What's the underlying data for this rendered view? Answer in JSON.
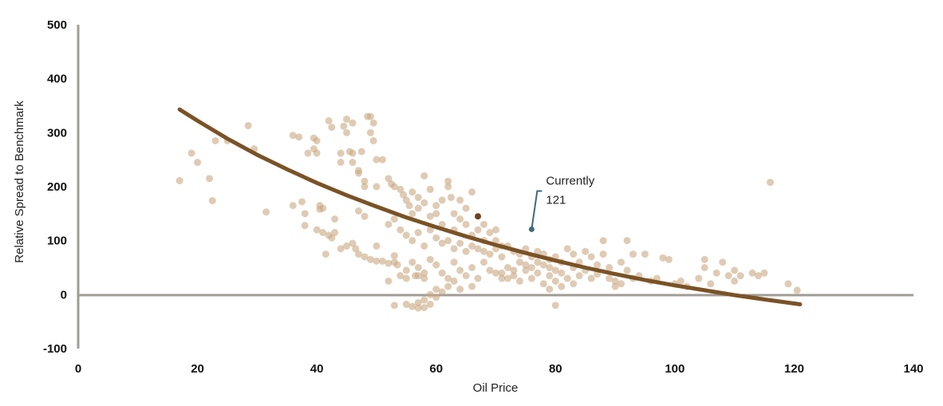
{
  "chart_data": {
    "type": "scatter",
    "title": "",
    "xlabel": "Oil Price",
    "ylabel": "Relative Spread to Benchmark",
    "xlim": [
      0,
      140
    ],
    "ylim": [
      -100,
      500
    ],
    "xticks": [
      "0",
      "20",
      "40",
      "60",
      "80",
      "100",
      "120",
      "140"
    ],
    "yticks": [
      "500",
      "400",
      "300",
      "200",
      "100",
      "0",
      "-100"
    ],
    "grid": false,
    "colors": {
      "points": "#c9a882",
      "trend": "#7a5226",
      "highlight": "#6b4420",
      "annotation": "#3f6b78",
      "axis": "#a09c96"
    },
    "highlight_point": [
      67,
      145
    ],
    "annotation": {
      "line1": "Currently",
      "line2": "121",
      "point": [
        76,
        121
      ]
    },
    "trendline": [
      [
        17,
        343
      ],
      [
        20,
        322
      ],
      [
        25,
        289
      ],
      [
        30,
        259
      ],
      [
        35,
        232
      ],
      [
        40,
        207
      ],
      [
        45,
        184
      ],
      [
        50,
        163
      ],
      [
        55,
        143
      ],
      [
        60,
        125
      ],
      [
        65,
        108
      ],
      [
        70,
        92
      ],
      [
        75,
        77
      ],
      [
        80,
        63
      ],
      [
        85,
        50
      ],
      [
        90,
        38
      ],
      [
        95,
        27
      ],
      [
        100,
        17
      ],
      [
        105,
        8
      ],
      [
        110,
        -1
      ],
      [
        115,
        -9
      ],
      [
        121,
        -18
      ]
    ],
    "points": [
      [
        17,
        211
      ],
      [
        19,
        262
      ],
      [
        20,
        245
      ],
      [
        22,
        215
      ],
      [
        22.5,
        174
      ],
      [
        23,
        285
      ],
      [
        25,
        285
      ],
      [
        28.5,
        313
      ],
      [
        29.5,
        270
      ],
      [
        31.5,
        153
      ],
      [
        36,
        165
      ],
      [
        36,
        295
      ],
      [
        37,
        292
      ],
      [
        37.5,
        172
      ],
      [
        38,
        150
      ],
      [
        38,
        128
      ],
      [
        38.5,
        262
      ],
      [
        39.5,
        290
      ],
      [
        39.5,
        270
      ],
      [
        40,
        285
      ],
      [
        40,
        262
      ],
      [
        40.5,
        165
      ],
      [
        40.5,
        158
      ],
      [
        41,
        160
      ],
      [
        40,
        120
      ],
      [
        41,
        115
      ],
      [
        41.5,
        75
      ],
      [
        42,
        110
      ],
      [
        42.5,
        105
      ],
      [
        42,
        322
      ],
      [
        42.5,
        310
      ],
      [
        43,
        115
      ],
      [
        43,
        140
      ],
      [
        44,
        245
      ],
      [
        44,
        262
      ],
      [
        44.5,
        312
      ],
      [
        45,
        325
      ],
      [
        45,
        300
      ],
      [
        45.5,
        265
      ],
      [
        46,
        262
      ],
      [
        46,
        318
      ],
      [
        46,
        245
      ],
      [
        47,
        230
      ],
      [
        47,
        225
      ],
      [
        47.5,
        265
      ],
      [
        48,
        200
      ],
      [
        48,
        210
      ],
      [
        48.5,
        330
      ],
      [
        49,
        330
      ],
      [
        49,
        300
      ],
      [
        49.5,
        318
      ],
      [
        49.5,
        285
      ],
      [
        50,
        250
      ],
      [
        50,
        200
      ],
      [
        46,
        95
      ],
      [
        46.5,
        85
      ],
      [
        45,
        90
      ],
      [
        47,
        75
      ],
      [
        48,
        70
      ],
      [
        49,
        65
      ],
      [
        50,
        62
      ],
      [
        51,
        62
      ],
      [
        52,
        58
      ],
      [
        53,
        60
      ],
      [
        53,
        72
      ],
      [
        53.5,
        55
      ],
      [
        54,
        35
      ],
      [
        53,
        -20
      ],
      [
        55,
        -18
      ],
      [
        56,
        -22
      ],
      [
        57,
        -25
      ],
      [
        58,
        -24
      ],
      [
        58,
        -10
      ],
      [
        56.5,
        35
      ],
      [
        57,
        35
      ],
      [
        58,
        30
      ],
      [
        52,
        25
      ],
      [
        55,
        45
      ],
      [
        48,
        145
      ],
      [
        47,
        155
      ],
      [
        44,
        85
      ],
      [
        50,
        90
      ],
      [
        51,
        250
      ],
      [
        52,
        215
      ],
      [
        52.5,
        205
      ],
      [
        53,
        200
      ],
      [
        54,
        195
      ],
      [
        54.5,
        185
      ],
      [
        55,
        175
      ],
      [
        55.5,
        165
      ],
      [
        56,
        150
      ],
      [
        56,
        190
      ],
      [
        57,
        180
      ],
      [
        57,
        160
      ],
      [
        58,
        220
      ],
      [
        58,
        170
      ],
      [
        59,
        145
      ],
      [
        59,
        195
      ],
      [
        60,
        150
      ],
      [
        60,
        165
      ],
      [
        61,
        175
      ],
      [
        61,
        130
      ],
      [
        62,
        210
      ],
      [
        62,
        200
      ],
      [
        62.5,
        180
      ],
      [
        63,
        150
      ],
      [
        63,
        120
      ],
      [
        64,
        175
      ],
      [
        64,
        140
      ],
      [
        65,
        160
      ],
      [
        65,
        130
      ],
      [
        66,
        190
      ],
      [
        66,
        110
      ],
      [
        67,
        120
      ],
      [
        68,
        100
      ],
      [
        68,
        130
      ],
      [
        69,
        115
      ],
      [
        70,
        100
      ],
      [
        70,
        120
      ],
      [
        71,
        90
      ],
      [
        52,
        130
      ],
      [
        53,
        140
      ],
      [
        54,
        120
      ],
      [
        55,
        110
      ],
      [
        56,
        100
      ],
      [
        57,
        115
      ],
      [
        58,
        90
      ],
      [
        59,
        120
      ],
      [
        60,
        105
      ],
      [
        61,
        95
      ],
      [
        62,
        100
      ],
      [
        63,
        85
      ],
      [
        64,
        95
      ],
      [
        65,
        80
      ],
      [
        66,
        90
      ],
      [
        67,
        85
      ],
      [
        68,
        80
      ],
      [
        69,
        75
      ],
      [
        70,
        85
      ],
      [
        71,
        70
      ],
      [
        72,
        90
      ],
      [
        73,
        80
      ],
      [
        74,
        75
      ],
      [
        75,
        85
      ],
      [
        76,
        70
      ],
      [
        77,
        80
      ],
      [
        78,
        75
      ],
      [
        79,
        65
      ],
      [
        80,
        70
      ],
      [
        81,
        60
      ],
      [
        55,
        30
      ],
      [
        56,
        60
      ],
      [
        57,
        50
      ],
      [
        58,
        40
      ],
      [
        59,
        65
      ],
      [
        60,
        55
      ],
      [
        61,
        40
      ],
      [
        62,
        30
      ],
      [
        63,
        60
      ],
      [
        64,
        45
      ],
      [
        65,
        35
      ],
      [
        66,
        50
      ],
      [
        67,
        30
      ],
      [
        68,
        60
      ],
      [
        69,
        45
      ],
      [
        70,
        40
      ],
      [
        71,
        30
      ],
      [
        72,
        50
      ],
      [
        73,
        35
      ],
      [
        74,
        25
      ],
      [
        75,
        45
      ],
      [
        76,
        30
      ],
      [
        77,
        40
      ],
      [
        78,
        20
      ],
      [
        79,
        35
      ],
      [
        80,
        25
      ],
      [
        81,
        40
      ],
      [
        82,
        30
      ],
      [
        83,
        20
      ],
      [
        84,
        35
      ],
      [
        59,
        0
      ],
      [
        60,
        10
      ],
      [
        61,
        5
      ],
      [
        62,
        15
      ],
      [
        57,
        -15
      ],
      [
        59,
        -18
      ],
      [
        60,
        -5
      ],
      [
        63,
        25
      ],
      [
        64,
        10
      ],
      [
        66,
        15
      ],
      [
        71,
        40
      ],
      [
        72,
        30
      ],
      [
        73,
        45
      ],
      [
        74,
        60
      ],
      [
        75,
        55
      ],
      [
        76,
        50
      ],
      [
        77,
        60
      ],
      [
        78,
        55
      ],
      [
        79,
        50
      ],
      [
        80,
        45
      ],
      [
        82,
        85
      ],
      [
        83,
        75
      ],
      [
        84,
        60
      ],
      [
        85,
        80
      ],
      [
        86,
        70
      ],
      [
        87,
        55
      ],
      [
        88,
        100
      ],
      [
        88,
        75
      ],
      [
        89,
        50
      ],
      [
        90,
        25
      ],
      [
        90,
        15
      ],
      [
        91,
        60
      ],
      [
        92,
        100
      ],
      [
        92,
        45
      ],
      [
        93,
        75
      ],
      [
        94,
        35
      ],
      [
        95,
        75
      ],
      [
        96,
        25
      ],
      [
        97,
        30
      ],
      [
        98,
        68
      ],
      [
        99,
        65
      ],
      [
        100,
        20
      ],
      [
        101,
        25
      ],
      [
        102,
        15
      ],
      [
        104,
        30
      ],
      [
        105,
        65
      ],
      [
        105,
        50
      ],
      [
        106,
        20
      ],
      [
        107,
        40
      ],
      [
        108,
        60
      ],
      [
        109,
        35
      ],
      [
        110,
        45
      ],
      [
        110,
        25
      ],
      [
        111,
        35
      ],
      [
        113,
        40
      ],
      [
        114,
        35
      ],
      [
        115,
        40
      ],
      [
        116,
        208
      ],
      [
        119,
        20
      ],
      [
        120.5,
        8
      ],
      [
        80,
        -20
      ],
      [
        85,
        45
      ],
      [
        86,
        30
      ],
      [
        87,
        38
      ],
      [
        89,
        30
      ],
      [
        91,
        20
      ],
      [
        93,
        30
      ],
      [
        83,
        50
      ],
      [
        81,
        15
      ],
      [
        79,
        10
      ]
    ]
  }
}
